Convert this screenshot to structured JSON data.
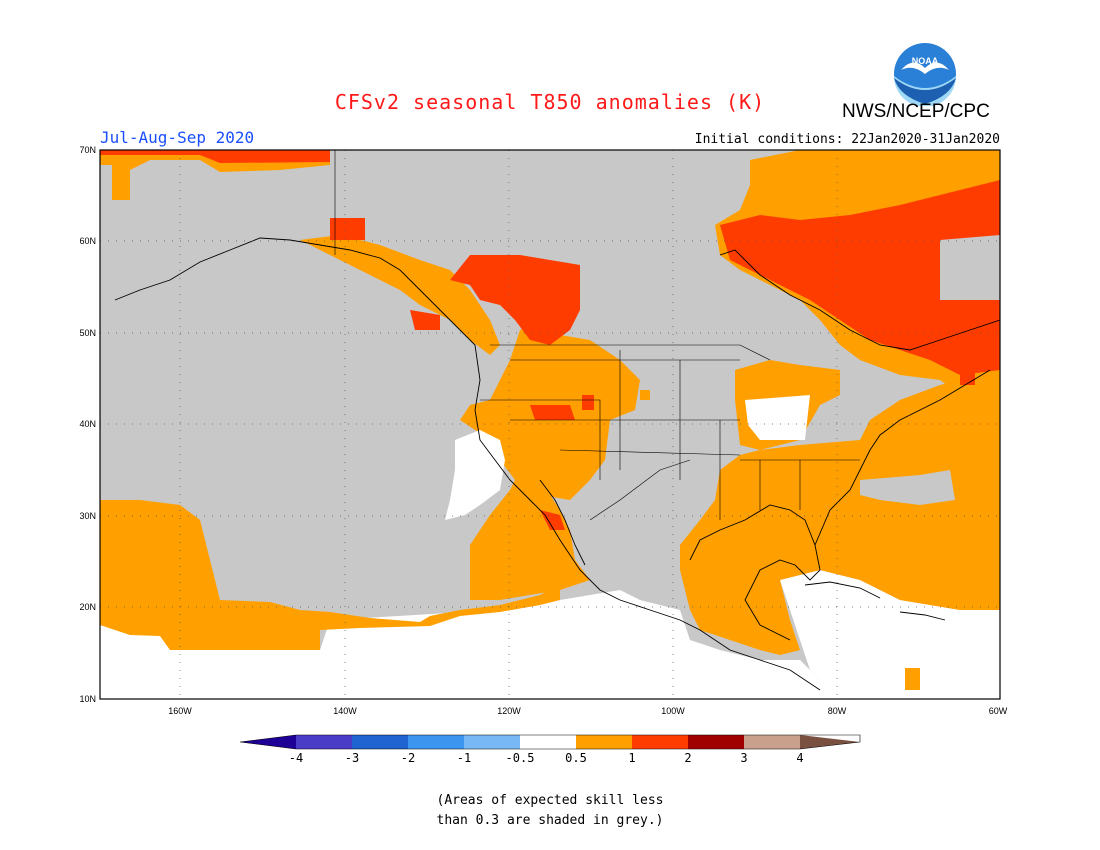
{
  "header": {
    "title": "CFSv2 seasonal T850 anomalies (K)",
    "agency": "NWS/NCEP/CPC",
    "logo_text": "NOAA",
    "period": "Jul-Aug-Sep 2020",
    "initial_conditions": "Initial conditions: 22Jan2020-31Jan2020"
  },
  "map": {
    "lon_range": [
      -172,
      -60
    ],
    "lat_range": [
      10,
      70
    ],
    "lat_ticks": [
      "70N",
      "60N",
      "50N",
      "40N",
      "30N",
      "20N",
      "10N"
    ],
    "lon_ticks": [
      "160W",
      "140W",
      "120W",
      "100W",
      "80W",
      "60W"
    ],
    "grid": "dotted",
    "colors": {
      "grey_no_skill": "#c8c8c8",
      "cat_0_5_to_1": "#ff9f00",
      "cat_1_to_2": "#ff3c00",
      "near_normal": "#ffffff"
    },
    "regions": [
      {
        "category": "1 to 2",
        "area": "Hudson Bay / Quebec / Labrador"
      },
      {
        "category": "1 to 2",
        "area": "Gulf of Alaska coast"
      },
      {
        "category": "1 to 2",
        "area": "Northern Alberta"
      },
      {
        "category": "1 to 2",
        "area": "Northwest Canada / Beaufort Sea"
      },
      {
        "category": "1 to 2",
        "area": "Gulf of California"
      },
      {
        "category": "0.5 to 1",
        "area": "US Southeast, Gulf of Mexico, Central America"
      },
      {
        "category": "0.5 to 1",
        "area": "US Intermountain West"
      },
      {
        "category": "0.5 to 1",
        "area": "Eastern Pacific south of 30N"
      },
      {
        "category": "-0.5 to 0.5",
        "area": "Off California coast, Great Lakes, Caribbean, tropical Pacific"
      },
      {
        "category": "no skill",
        "area": "North Pacific, Alaska, Canada, central US"
      }
    ]
  },
  "colorbar": {
    "labels": [
      "-4",
      "-3",
      "-2",
      "-1",
      "-0.5",
      "0.5",
      "1",
      "2",
      "3",
      "4"
    ],
    "colors": [
      "#1e0096",
      "#4b3cc8",
      "#2064d2",
      "#3c96f0",
      "#78b9f5",
      "#ffffff",
      "#ff9f00",
      "#ff3c00",
      "#a00000",
      "#c8a08c",
      "#7a5040"
    ]
  },
  "footnote": {
    "line1": "(Areas of expected skill less",
    "line2": "than 0.3 are shaded in grey.)"
  }
}
